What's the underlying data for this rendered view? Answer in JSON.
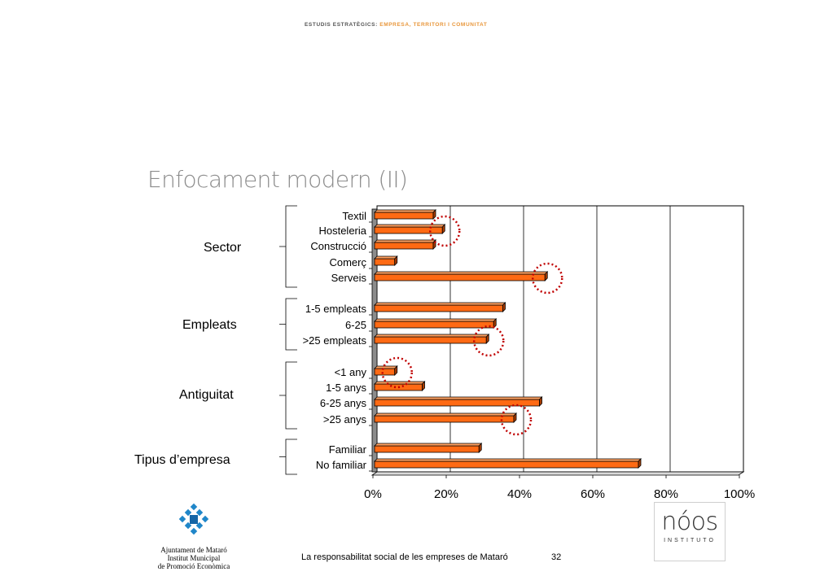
{
  "header": {
    "label_dark": "ESTUDIS ESTRATÈGICS:",
    "label_accent": "EMPRESA, TERRITORI I COMUNITAT"
  },
  "slide": {
    "title": "Enfocament modern (II)"
  },
  "groups": [
    {
      "label": "Sector",
      "count": 5
    },
    {
      "label": "Empleats",
      "count": 3
    },
    {
      "label": "Antiguitat",
      "count": 4
    },
    {
      "label": "Tipus d’empresa",
      "count": 2
    }
  ],
  "chart_data": {
    "type": "bar",
    "orientation": "horizontal",
    "categories": [
      "Textil",
      "Hosteleria",
      "Construcció",
      "Comerç",
      "Serveis",
      "1-5 empleats",
      "6-25",
      ">25 empleats",
      "<1 any",
      "1-5 anys",
      "6-25 anys",
      ">25 anys",
      "Familiar",
      "No familiar"
    ],
    "values": [
      16,
      18.5,
      16,
      5.5,
      46.5,
      35,
      32.5,
      30.5,
      5.5,
      13,
      45,
      38,
      28.5,
      72
    ],
    "xlim": [
      0,
      100
    ],
    "xticks": [
      "0%",
      "20%",
      "40%",
      "60%",
      "80%",
      "100%"
    ],
    "tick_values": [
      0,
      20,
      40,
      60,
      80,
      100
    ],
    "grid": true,
    "bar_color": "#ff6a14",
    "highlight_color": "#c00000",
    "highlighted_categories": [
      "Hosteleria",
      "Serveis",
      ">25 empleats",
      "<1 any",
      ">25 anys"
    ]
  },
  "footer": {
    "text": "La responsabilitat social de les empreses de Mataró",
    "page": "32"
  },
  "logos": {
    "left_org": [
      "Ajuntament de Mataró",
      "Institut Municipal",
      "de Promoció Econòmica"
    ],
    "right_brand": "nóos",
    "right_sub": "INSTITUTO"
  },
  "colors": {
    "accent": "#e8963a",
    "title_gray": "#8c8c8c",
    "logo_blue": "#1f86c9"
  }
}
